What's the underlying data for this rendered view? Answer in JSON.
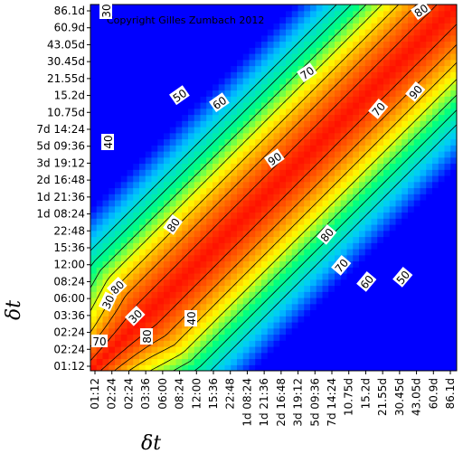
{
  "chart_data": {
    "type": "heatmap",
    "copyright": "Copyright Gilles Zumbach 2012",
    "xlabel": "δt",
    "ylabel": "δt",
    "x_ticks": [
      "01:12",
      "02:24",
      "02:24",
      "03:36",
      "06:00",
      "08:24",
      "12:00",
      "15:36",
      "22:48",
      "1d 08:24",
      "1d 21:36",
      "2d 16:48",
      "3d 19:12",
      "5d 09:36",
      "7d 14:24",
      "10.75d",
      "15.2d",
      "21.55d",
      "30.45d",
      "43.05d",
      "60.9d",
      "86.1d"
    ],
    "y_ticks": [
      "01:12",
      "02:24",
      "02:24",
      "03:36",
      "06:00",
      "08:24",
      "12:00",
      "15:36",
      "22:48",
      "1d 08:24",
      "1d 21:36",
      "2d 16:48",
      "3d 19:12",
      "5d 09:36",
      "7d 14:24",
      "10.75d",
      "15.2d",
      "21.55d",
      "30.45d",
      "43.05d",
      "60.9d",
      "86.1d"
    ],
    "contour_levels": [
      30,
      40,
      50,
      60,
      70,
      80,
      90
    ],
    "contour_labels": [
      {
        "text": "30"
      },
      {
        "text": "40"
      },
      {
        "text": "50"
      },
      {
        "text": "60"
      },
      {
        "text": "70"
      },
      {
        "text": "80"
      },
      {
        "text": "90"
      },
      {
        "text": "80"
      },
      {
        "text": "70"
      },
      {
        "text": "90"
      },
      {
        "text": "80"
      },
      {
        "text": "70"
      },
      {
        "text": "60"
      },
      {
        "text": "50"
      },
      {
        "text": "40"
      },
      {
        "text": "80"
      },
      {
        "text": "30"
      },
      {
        "text": "70"
      },
      {
        "text": "80"
      },
      {
        "text": "30"
      }
    ],
    "colormap": [
      "#0000ff",
      "#00c8ff",
      "#00ff80",
      "#ffff00",
      "#ff8000",
      "#ff0000"
    ],
    "value_range": [
      0,
      100
    ]
  }
}
